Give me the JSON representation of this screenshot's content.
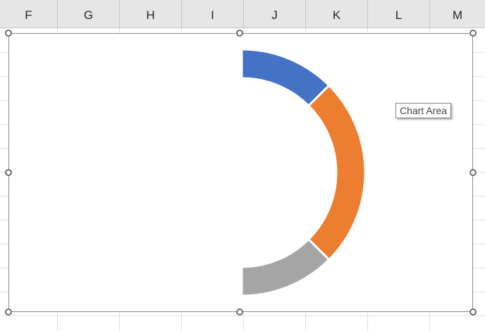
{
  "columns": [
    "F",
    "G",
    "H",
    "I",
    "J",
    "K",
    "L",
    "M"
  ],
  "tooltip": {
    "text": "Chart Area"
  },
  "chart_data": {
    "type": "pie",
    "style": "doughnut (half visible)",
    "legend": "none",
    "series": [
      {
        "values": [
          1,
          2,
          1
        ],
        "colors": [
          "#4472C4",
          "#ED7D31",
          "#A5A5A5"
        ]
      }
    ]
  }
}
